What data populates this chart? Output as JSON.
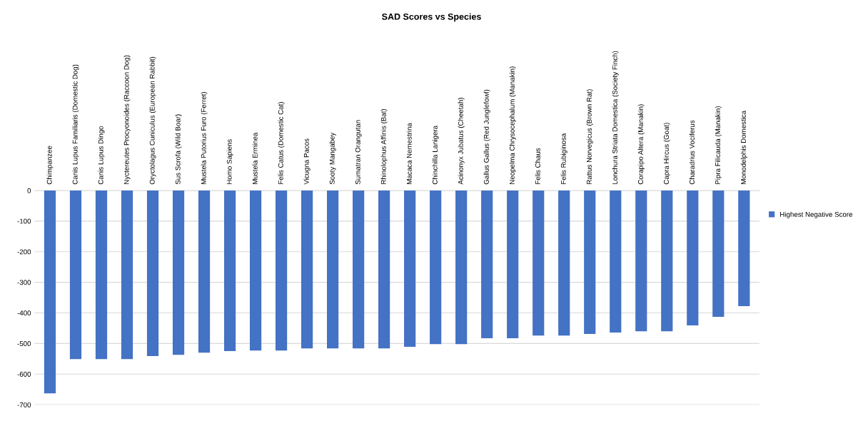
{
  "chart_data": {
    "type": "bar",
    "title": "SAD Scores vs Species",
    "categories": [
      "Chimpanzee",
      "Canis Lupus Familiaris (Domestic Dog)",
      "Canis Lupus Dingo",
      "Nyctereutes Procyonoides (Raccoon Dog)",
      "Oryctolagus Cuniculus (European Rabbit)",
      "Sus Scrofa (Wild Boar)",
      "Mustela Putorius Furo (Ferret)",
      "Homo Sapiens",
      "Mustela Erminea",
      "Felis Catus (Domestic Cat)",
      "Vicugna Pacos",
      "Sooty Mangabey",
      "Sumatran Orangutan",
      "Rhinolophus Affinis (Bat)",
      "Macaca Nemestrina",
      "Chinchilla Lanigera",
      "Acinonyx Jubatus (Cheetah)",
      "Gallus Gallus (Red Junglefowl)",
      "Neopelma Chrysocephalum (Manakin)",
      "Felis Chaus",
      "Felis Rubiginosa",
      "Rattus Norvegicus (Brown Rat)",
      "Lonchura Striata Domestica (Society Finch)",
      "Corapipo Altera (Manakin)",
      "Capra Hircus (Goat)",
      "Charadrius Vociferus",
      "Pipra Filicauda (Manakin)",
      "Monodelphis Domestica"
    ],
    "series": [
      {
        "name": "Highest Negative Score",
        "color": "#4472c4",
        "values": [
          -663,
          -551,
          -551,
          -551,
          -541,
          -537,
          -530,
          -525,
          -523,
          -523,
          -516,
          -516,
          -516,
          -516,
          -511,
          -502,
          -502,
          -483,
          -483,
          -474,
          -474,
          -469,
          -464,
          -460,
          -460,
          -441,
          -413,
          -378
        ]
      }
    ],
    "ylim": [
      -700,
      0
    ],
    "yticks": [
      -700,
      -600,
      -500,
      -400,
      -300,
      -200,
      -100,
      0
    ],
    "grid": "y",
    "legend": "right"
  }
}
